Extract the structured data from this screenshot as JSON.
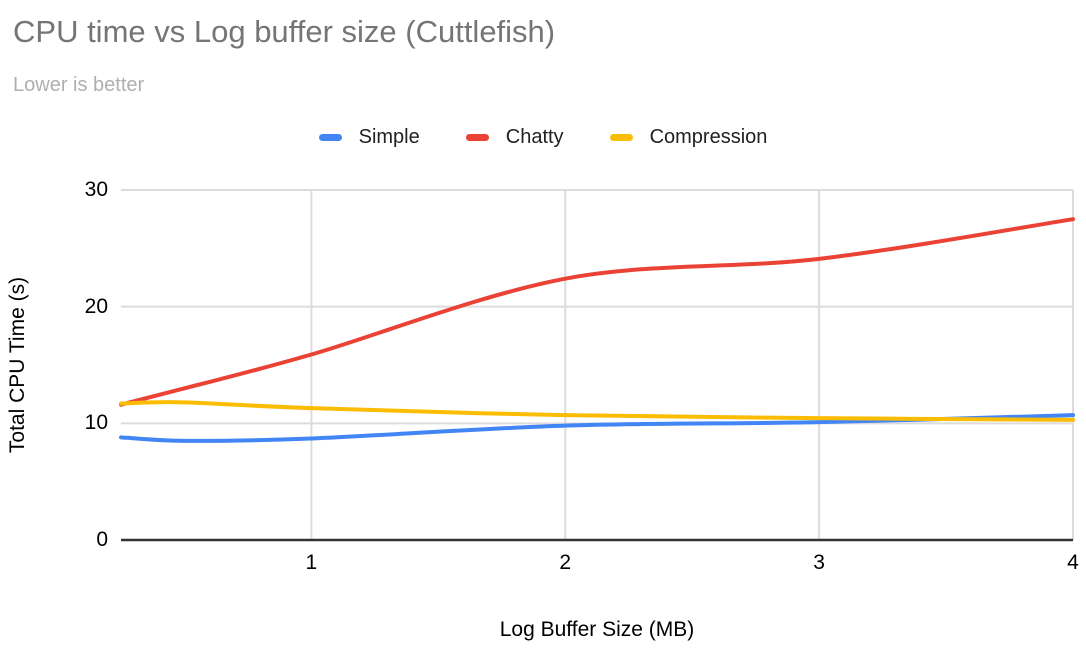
{
  "chart_data": {
    "type": "line",
    "title": "CPU time vs Log buffer size (Cuttlefish)",
    "subtitle": "Lower is better",
    "xlabel": "Log Buffer Size (MB)",
    "ylabel": "Total CPU Time (s)",
    "x": [
      0.25,
      0.5,
      1,
      2,
      3,
      4
    ],
    "series": [
      {
        "name": "Simple",
        "color": "#4285F4",
        "values": [
          8.8,
          8.5,
          8.7,
          9.8,
          10.1,
          10.7
        ]
      },
      {
        "name": "Chatty",
        "color": "#EA4335",
        "values": [
          11.6,
          13.0,
          15.9,
          22.4,
          24.1,
          27.5
        ]
      },
      {
        "name": "Compression",
        "color": "#FBBC04",
        "values": [
          11.7,
          11.8,
          11.3,
          10.7,
          10.45,
          10.3
        ]
      }
    ],
    "xlim": [
      0.25,
      4
    ],
    "ylim": [
      0,
      30
    ],
    "x_ticks": [
      "1",
      "2",
      "3",
      "4"
    ],
    "x_tick_values": [
      1,
      2,
      3,
      4
    ],
    "y_ticks": [
      "0",
      "10",
      "20",
      "30"
    ],
    "y_tick_values": [
      0,
      10,
      20,
      30
    ],
    "grid": true,
    "smooth": true,
    "legend_position": "top"
  },
  "style": {
    "background": "#ffffff",
    "title_color": "#757575",
    "subtitle_color": "#afafaf",
    "axis_text_color": "#000000",
    "gridline_color": "#dcdcdc",
    "baseline_color": "#333333"
  }
}
